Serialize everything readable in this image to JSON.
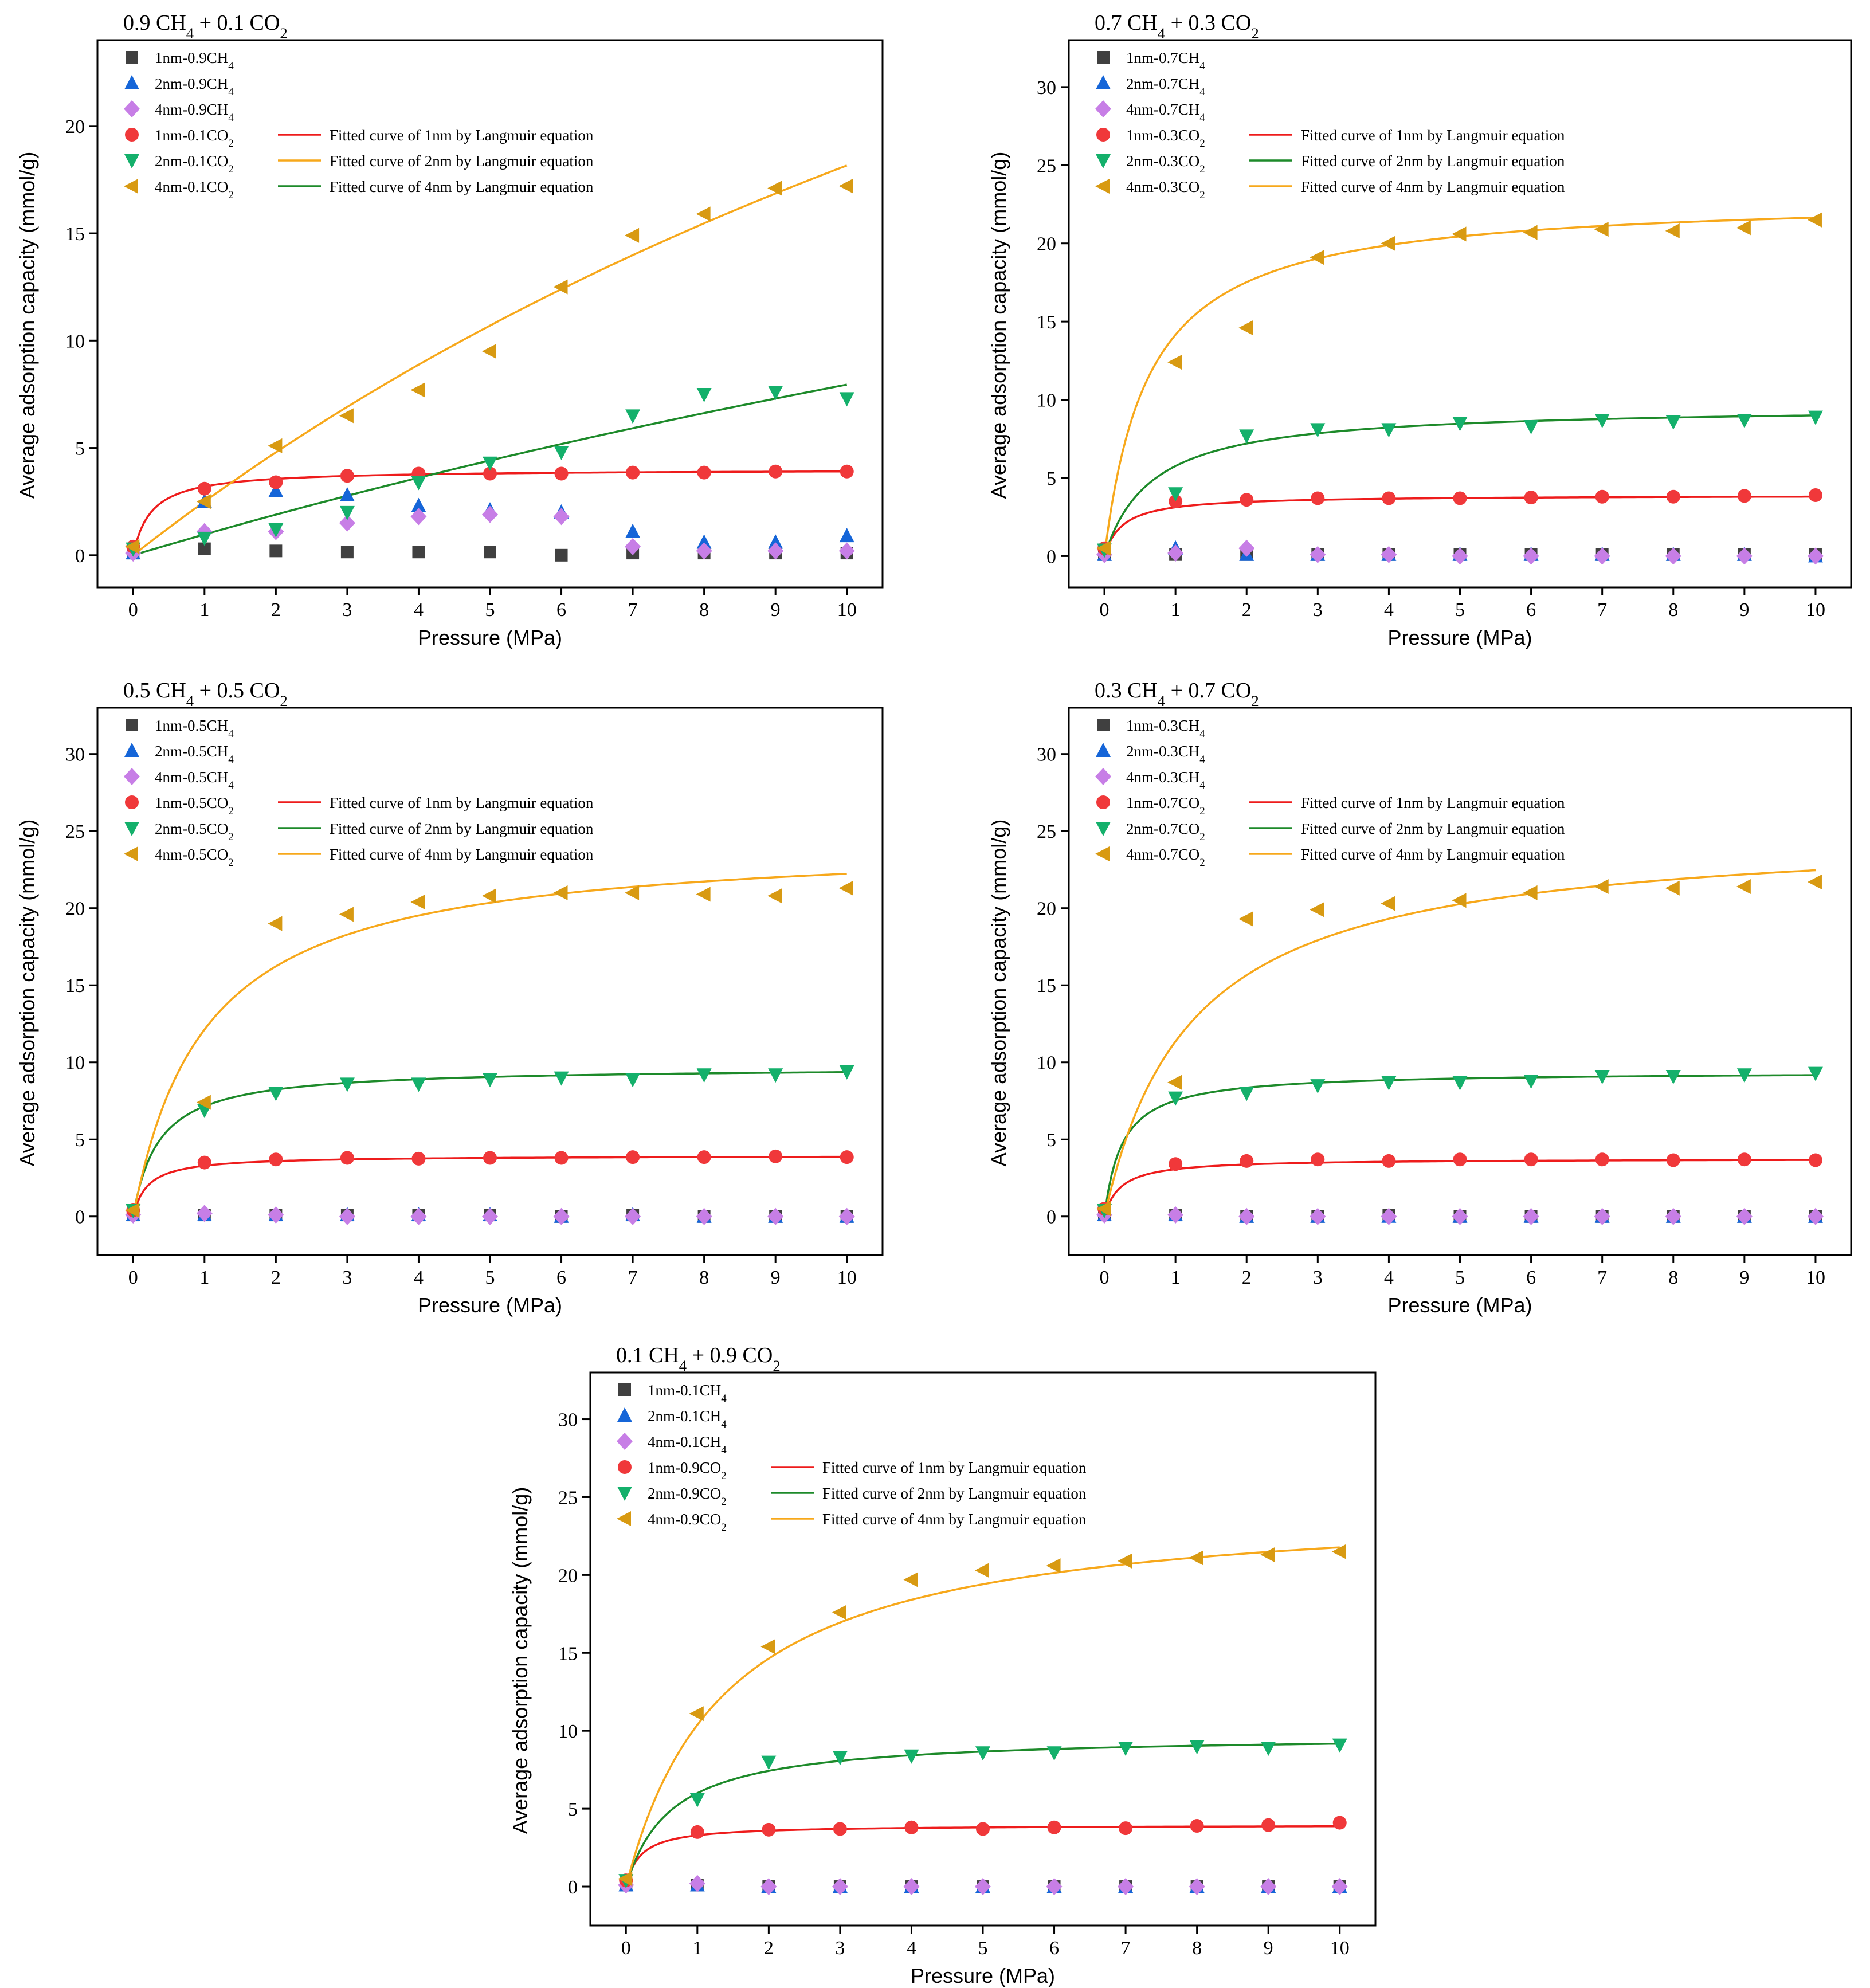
{
  "figure": {
    "xlabel": "Pressure (MPa)",
    "ylabel": "Average adsorption capacity (mmol/g)",
    "colors": {
      "ch4_1nm": "#404040",
      "ch4_2nm": "#1565d8",
      "ch4_4nm": "#c77ee6",
      "co2_1nm": "#f0383a",
      "co2_2nm": "#14b06b",
      "co2_4nm": "#d89a12",
      "fit_red": "#ee1c1c",
      "fit_orange": "#f7a81b",
      "fit_green": "#1d8a2a"
    }
  },
  "chart_data": [
    {
      "type": "scatter",
      "title": "0.9 CH4 + 0.1 CO2",
      "xlabel": "Pressure (MPa)",
      "ylabel": "Average adsorption capacity (mmol/g)",
      "xlim": [
        -0.5,
        10.5
      ],
      "ylim": [
        -1.5,
        24
      ],
      "yticks": [
        0,
        5,
        10,
        15,
        20
      ],
      "xticks": [
        0,
        1,
        2,
        3,
        4,
        5,
        6,
        7,
        8,
        9,
        10
      ],
      "x": [
        0,
        1,
        2,
        3,
        4,
        5,
        6,
        7,
        8,
        9,
        10
      ],
      "series": [
        {
          "name": "1nm-0.9CH4",
          "marker": "square",
          "color": "#404040",
          "values": [
            0.1,
            0.3,
            0.2,
            0.15,
            0.15,
            0.15,
            0.0,
            0.1,
            0.1,
            0.1,
            0.1
          ]
        },
        {
          "name": "2nm-0.9CH4",
          "marker": "triangle-up",
          "color": "#1565d8",
          "values": [
            0.1,
            2.5,
            3.0,
            2.8,
            2.3,
            2.1,
            2.0,
            1.1,
            0.6,
            0.6,
            0.9
          ]
        },
        {
          "name": "4nm-0.9CH4",
          "marker": "diamond",
          "color": "#c77ee6",
          "values": [
            0.1,
            1.1,
            1.1,
            1.5,
            1.8,
            1.9,
            1.8,
            0.4,
            0.2,
            0.2,
            0.2
          ]
        },
        {
          "name": "1nm-0.1CO2",
          "marker": "circle",
          "color": "#f0383a",
          "values": [
            0.4,
            3.1,
            3.4,
            3.7,
            3.8,
            3.8,
            3.8,
            3.85,
            3.85,
            3.9,
            3.9
          ]
        },
        {
          "name": "2nm-0.1CO2",
          "marker": "triangle-down",
          "color": "#14b06b",
          "values": [
            0.3,
            0.8,
            1.2,
            2.0,
            3.4,
            4.3,
            4.8,
            6.5,
            7.5,
            7.6,
            7.3
          ]
        },
        {
          "name": "4nm-0.1CO2",
          "marker": "triangle-left",
          "color": "#d89a12",
          "values": [
            0.4,
            2.5,
            5.1,
            6.5,
            7.7,
            9.5,
            12.5,
            14.9,
            15.9,
            17.1,
            17.2
          ]
        }
      ],
      "fits": [
        {
          "name": "Fitted curve of 1nm by Langmuir equation",
          "color": "#ee1c1c",
          "qm": 4.0,
          "b": 4.0,
          "q0": 0
        },
        {
          "name": "Fitted curve of 2nm by Langmuir equation",
          "color": "#f7a81b",
          "qm": 60,
          "b": 0.0434,
          "q0": 0
        },
        {
          "name": "Fitted curve of 4nm by Langmuir equation",
          "color": "#1d8a2a",
          "qm": 40,
          "b": 0.0248,
          "q0": 0
        }
      ]
    },
    {
      "type": "scatter",
      "title": "0.7 CH4 + 0.3 CO2",
      "xlabel": "Pressure (MPa)",
      "ylabel": "Average adsorption capacity (mmol/g)",
      "xlim": [
        -0.5,
        10.5
      ],
      "ylim": [
        -2,
        33
      ],
      "yticks": [
        0,
        5,
        10,
        15,
        20,
        25,
        30
      ],
      "xticks": [
        0,
        1,
        2,
        3,
        4,
        5,
        6,
        7,
        8,
        9,
        10
      ],
      "x": [
        0,
        1,
        2,
        3,
        4,
        5,
        6,
        7,
        8,
        9,
        10
      ],
      "series": [
        {
          "name": "1nm-0.7CH4",
          "marker": "square",
          "color": "#404040",
          "values": [
            0.1,
            0.1,
            0.1,
            0.1,
            0.1,
            0.1,
            0.1,
            0.1,
            0.1,
            0.1,
            0.1
          ]
        },
        {
          "name": "2nm-0.7CH4",
          "marker": "triangle-up",
          "color": "#1565d8",
          "values": [
            0.1,
            0.5,
            0.1,
            0.1,
            0.1,
            0.1,
            0.1,
            0.1,
            0.1,
            0.1,
            0.0
          ]
        },
        {
          "name": "4nm-0.7CH4",
          "marker": "diamond",
          "color": "#c77ee6",
          "values": [
            0.1,
            0.2,
            0.5,
            0.1,
            0.1,
            0.0,
            0.0,
            0.0,
            0.0,
            0.0,
            0.0
          ]
        },
        {
          "name": "1nm-0.3CO2",
          "marker": "circle",
          "color": "#f0383a",
          "values": [
            0.5,
            3.5,
            3.6,
            3.7,
            3.7,
            3.7,
            3.75,
            3.8,
            3.8,
            3.85,
            3.9
          ]
        },
        {
          "name": "2nm-0.3CO2",
          "marker": "triangle-down",
          "color": "#14b06b",
          "values": [
            0.4,
            4.0,
            7.7,
            8.1,
            8.1,
            8.5,
            8.3,
            8.7,
            8.6,
            8.7,
            8.9
          ]
        },
        {
          "name": "4nm-0.3CO2",
          "marker": "triangle-left",
          "color": "#d89a12",
          "values": [
            0.5,
            12.4,
            14.6,
            19.1,
            20.0,
            20.6,
            20.7,
            20.9,
            20.8,
            21.0,
            21.5
          ]
        }
      ],
      "fits": [
        {
          "name": "Fitted curve of 1nm by Langmuir equation",
          "color": "#ee1c1c",
          "qm": 3.9,
          "b": 4.0,
          "q0": 0
        },
        {
          "name": "Fitted curve of 2nm by Langmuir equation",
          "color": "#1d8a2a",
          "qm": 9.6,
          "b": 1.5,
          "q0": 0
        },
        {
          "name": "Fitted curve of 4nm by Langmuir equation",
          "color": "#f7a81b",
          "qm": 23.0,
          "b": 1.6,
          "q0": 0
        }
      ]
    },
    {
      "type": "scatter",
      "title": "0.5 CH4 + 0.5 CO2",
      "xlabel": "Pressure (MPa)",
      "ylabel": "Average adsorption capacity (mmol/g)",
      "xlim": [
        -0.5,
        10.5
      ],
      "ylim": [
        -2.5,
        33
      ],
      "yticks": [
        0,
        5,
        10,
        15,
        20,
        25,
        30
      ],
      "xticks": [
        0,
        1,
        2,
        3,
        4,
        5,
        6,
        7,
        8,
        9,
        10
      ],
      "x": [
        0,
        1,
        2,
        3,
        4,
        5,
        6,
        7,
        8,
        9,
        10
      ],
      "series": [
        {
          "name": "1nm-0.5CH4",
          "marker": "square",
          "color": "#404040",
          "values": [
            0.1,
            0.1,
            0.1,
            0.1,
            0.1,
            0.1,
            0.0,
            0.1,
            0.0,
            0.0,
            0.0
          ]
        },
        {
          "name": "2nm-0.5CH4",
          "marker": "triangle-up",
          "color": "#1565d8",
          "values": [
            0.1,
            0.1,
            0.1,
            0.1,
            0.1,
            0.1,
            0.0,
            0.1,
            0.0,
            0.0,
            0.0
          ]
        },
        {
          "name": "4nm-0.5CH4",
          "marker": "diamond",
          "color": "#c77ee6",
          "values": [
            0.1,
            0.2,
            0.1,
            0.0,
            0.0,
            0.0,
            0.0,
            0.0,
            0.0,
            0.0,
            0.0
          ]
        },
        {
          "name": "1nm-0.5CO2",
          "marker": "circle",
          "color": "#f0383a",
          "values": [
            0.4,
            3.5,
            3.7,
            3.8,
            3.75,
            3.8,
            3.8,
            3.85,
            3.85,
            3.9,
            3.85
          ]
        },
        {
          "name": "2nm-0.5CO2",
          "marker": "triangle-down",
          "color": "#14b06b",
          "values": [
            0.4,
            6.9,
            8.0,
            8.6,
            8.6,
            8.9,
            9.0,
            8.9,
            9.2,
            9.2,
            9.4
          ]
        },
        {
          "name": "4nm-0.5CO2",
          "marker": "triangle-left",
          "color": "#d89a12",
          "values": [
            0.4,
            7.4,
            19.0,
            19.6,
            20.4,
            20.8,
            21.0,
            21.0,
            20.9,
            20.8,
            21.3
          ]
        }
      ],
      "fits": [
        {
          "name": "Fitted curve of 1nm by Langmuir equation",
          "color": "#ee1c1c",
          "qm": 3.95,
          "b": 5.0,
          "q0": 0
        },
        {
          "name": "Fitted curve of 2nm by Langmuir equation",
          "color": "#1d8a2a",
          "qm": 9.7,
          "b": 2.8,
          "q0": 0
        },
        {
          "name": "Fitted curve of 4nm by Langmuir equation",
          "color": "#f7a81b",
          "qm": 24.5,
          "b": 0.98,
          "q0": 0
        }
      ]
    },
    {
      "type": "scatter",
      "title": "0.3 CH4 + 0.7 CO2",
      "xlabel": "Pressure (MPa)",
      "ylabel": "Average adsorption capacity (mmol/g)",
      "xlim": [
        -0.5,
        10.5
      ],
      "ylim": [
        -2.5,
        33
      ],
      "yticks": [
        0,
        5,
        10,
        15,
        20,
        25,
        30
      ],
      "xticks": [
        0,
        1,
        2,
        3,
        4,
        5,
        6,
        7,
        8,
        9,
        10
      ],
      "x": [
        0,
        1,
        2,
        3,
        4,
        5,
        6,
        7,
        8,
        9,
        10
      ],
      "series": [
        {
          "name": "1nm-0.3CH4",
          "marker": "square",
          "color": "#404040",
          "values": [
            0.1,
            0.1,
            0.0,
            0.0,
            0.1,
            0.0,
            0.0,
            0.0,
            0.0,
            0.0,
            0.0
          ]
        },
        {
          "name": "2nm-0.3CH4",
          "marker": "triangle-up",
          "color": "#1565d8",
          "values": [
            0.1,
            0.1,
            0.0,
            0.0,
            0.0,
            0.0,
            0.0,
            0.0,
            0.0,
            0.0,
            0.0
          ]
        },
        {
          "name": "4nm-0.3CH4",
          "marker": "diamond",
          "color": "#c77ee6",
          "values": [
            0.1,
            0.1,
            0.0,
            0.0,
            0.0,
            0.0,
            0.0,
            0.0,
            0.0,
            0.0,
            0.0
          ]
        },
        {
          "name": "1nm-0.7CO2",
          "marker": "circle",
          "color": "#f0383a",
          "values": [
            0.5,
            3.4,
            3.6,
            3.7,
            3.6,
            3.7,
            3.7,
            3.7,
            3.65,
            3.7,
            3.65
          ]
        },
        {
          "name": "2nm-0.7CO2",
          "marker": "triangle-down",
          "color": "#14b06b",
          "values": [
            0.4,
            7.7,
            8.0,
            8.5,
            8.7,
            8.7,
            8.8,
            9.1,
            9.1,
            9.2,
            9.3
          ]
        },
        {
          "name": "4nm-0.7CO2",
          "marker": "triangle-left",
          "color": "#d89a12",
          "values": [
            0.5,
            8.7,
            19.3,
            19.9,
            20.3,
            20.5,
            21.0,
            21.4,
            21.3,
            21.4,
            21.7
          ]
        }
      ],
      "fits": [
        {
          "name": "Fitted curve of 1nm by Langmuir equation",
          "color": "#ee1c1c",
          "qm": 3.75,
          "b": 4.5,
          "q0": 0
        },
        {
          "name": "Fitted curve of 2nm by Langmuir equation",
          "color": "#1d8a2a",
          "qm": 9.4,
          "b": 4.0,
          "q0": 0
        },
        {
          "name": "Fitted curve of 4nm by Langmuir equation",
          "color": "#f7a81b",
          "qm": 25.2,
          "b": 0.82,
          "q0": 0
        }
      ]
    },
    {
      "type": "scatter",
      "title": "0.1 CH4 + 0.9 CO2",
      "xlabel": "Pressure (MPa)",
      "ylabel": "Average adsorption capacity (mmol/g)",
      "xlim": [
        -0.5,
        10.5
      ],
      "ylim": [
        -2.5,
        33
      ],
      "yticks": [
        0,
        5,
        10,
        15,
        20,
        25,
        30
      ],
      "xticks": [
        0,
        1,
        2,
        3,
        4,
        5,
        6,
        7,
        8,
        9,
        10
      ],
      "x": [
        0,
        1,
        2,
        3,
        4,
        5,
        6,
        7,
        8,
        9,
        10
      ],
      "series": [
        {
          "name": "1nm-0.1CH4",
          "marker": "square",
          "color": "#404040",
          "values": [
            0.1,
            0.1,
            0.0,
            0.0,
            0.0,
            0.0,
            0.0,
            0.0,
            0.0,
            0.0,
            0.0
          ]
        },
        {
          "name": "2nm-0.1CH4",
          "marker": "triangle-up",
          "color": "#1565d8",
          "values": [
            0.1,
            0.1,
            0.0,
            0.0,
            0.0,
            0.0,
            0.0,
            0.0,
            0.0,
            0.0,
            0.0
          ]
        },
        {
          "name": "4nm-0.1CH4",
          "marker": "diamond",
          "color": "#c77ee6",
          "values": [
            0.1,
            0.2,
            0.0,
            0.0,
            0.0,
            0.0,
            0.0,
            0.0,
            0.0,
            0.0,
            0.0
          ]
        },
        {
          "name": "1nm-0.9CO2",
          "marker": "circle",
          "color": "#f0383a",
          "values": [
            0.4,
            3.5,
            3.65,
            3.7,
            3.8,
            3.7,
            3.8,
            3.75,
            3.9,
            3.95,
            4.1
          ]
        },
        {
          "name": "2nm-0.9CO2",
          "marker": "triangle-down",
          "color": "#14b06b",
          "values": [
            0.4,
            5.6,
            8.0,
            8.3,
            8.4,
            8.6,
            8.6,
            8.9,
            9.0,
            8.9,
            9.1
          ]
        },
        {
          "name": "4nm-0.9CO2",
          "marker": "triangle-left",
          "color": "#d89a12",
          "values": [
            0.5,
            11.1,
            15.4,
            17.6,
            19.7,
            20.3,
            20.6,
            20.9,
            21.1,
            21.3,
            21.5
          ]
        }
      ],
      "fits": [
        {
          "name": "Fitted curve of 1nm by Langmuir equation",
          "color": "#ee1c1c",
          "qm": 3.95,
          "b": 5.0,
          "q0": 0
        },
        {
          "name": "Fitted curve of 2nm by Langmuir equation",
          "color": "#1d8a2a",
          "qm": 9.75,
          "b": 1.6,
          "q0": 0
        },
        {
          "name": "Fitted curve of 4nm by Langmuir equation",
          "color": "#f7a81b",
          "qm": 24.8,
          "b": 0.72,
          "q0": 0
        }
      ]
    }
  ]
}
